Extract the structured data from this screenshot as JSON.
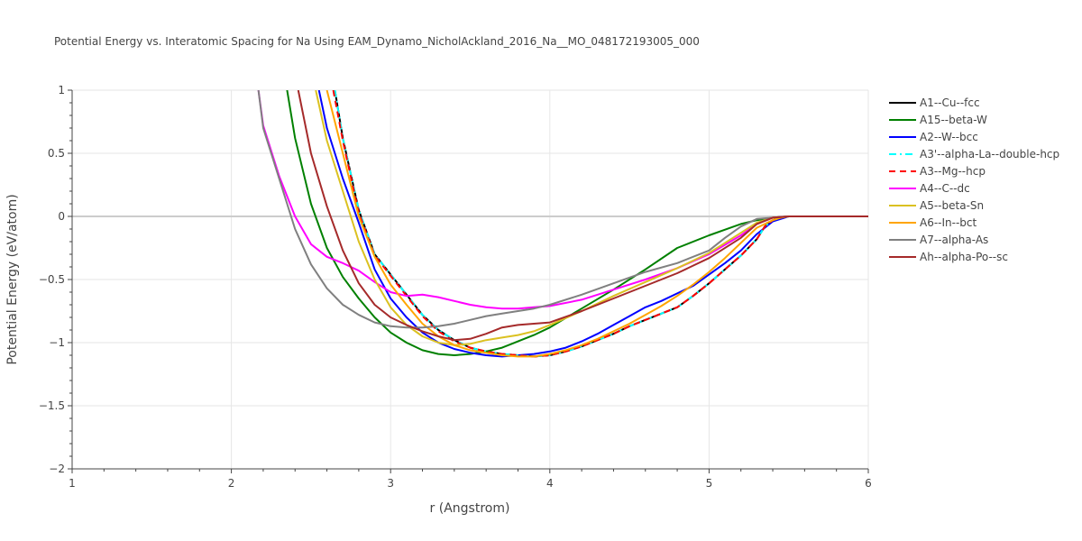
{
  "chart_data": {
    "type": "line",
    "title": "Potential Energy vs. Interatomic Spacing for Na Using EAM_Dynamo_NicholAckland_2016_Na__MO_048172193005_000",
    "xlabel": "r (Angstrom)",
    "ylabel": "Potential Energy (eV/atom)",
    "xlim": [
      1,
      6
    ],
    "ylim": [
      -2,
      1
    ],
    "xticks": [
      1,
      2,
      3,
      4,
      5,
      6
    ],
    "xtick_labels": [
      "1",
      "2",
      "3",
      "4",
      "5",
      "6"
    ],
    "yticks": [
      -2,
      -1.5,
      -1,
      -0.5,
      0,
      0.5,
      1
    ],
    "ytick_labels": [
      "−2",
      "−1.5",
      "−1",
      "−0.5",
      "0",
      "0.5",
      "1"
    ],
    "grid": true,
    "legend_position": "right",
    "series": [
      {
        "name": "A1--Cu--fcc",
        "color": "#000000",
        "dash": "solid",
        "x": [
          2.65,
          2.7,
          2.8,
          2.9,
          3.0,
          3.1,
          3.2,
          3.3,
          3.4,
          3.5,
          3.6,
          3.7,
          3.8,
          3.9,
          4.0,
          4.1,
          4.2,
          4.3,
          4.4,
          4.5,
          4.6,
          4.7,
          4.8,
          4.9,
          5.0,
          5.1,
          5.2,
          5.3,
          5.35,
          5.4,
          5.45,
          5.5,
          5.6,
          6.0
        ],
        "y": [
          1.0,
          0.62,
          0.05,
          -0.3,
          -0.46,
          -0.62,
          -0.78,
          -0.9,
          -0.98,
          -1.04,
          -1.07,
          -1.09,
          -1.1,
          -1.11,
          -1.1,
          -1.07,
          -1.03,
          -0.98,
          -0.93,
          -0.87,
          -0.82,
          -0.77,
          -0.72,
          -0.63,
          -0.53,
          -0.42,
          -0.31,
          -0.18,
          -0.08,
          -0.03,
          -0.01,
          0.0,
          0.0,
          0.0
        ]
      },
      {
        "name": "A15--beta-W",
        "color": "#008000",
        "dash": "solid",
        "x": [
          2.35,
          2.4,
          2.5,
          2.6,
          2.7,
          2.8,
          2.9,
          3.0,
          3.1,
          3.2,
          3.3,
          3.4,
          3.5,
          3.6,
          3.7,
          3.8,
          3.9,
          4.0,
          4.2,
          4.4,
          4.6,
          4.8,
          5.0,
          5.2,
          5.3,
          5.4,
          5.5,
          5.6,
          6.0
        ],
        "y": [
          1.0,
          0.62,
          0.1,
          -0.25,
          -0.48,
          -0.65,
          -0.8,
          -0.92,
          -1.0,
          -1.06,
          -1.09,
          -1.1,
          -1.09,
          -1.07,
          -1.04,
          -0.99,
          -0.94,
          -0.88,
          -0.73,
          -0.58,
          -0.42,
          -0.25,
          -0.15,
          -0.06,
          -0.03,
          -0.01,
          0.0,
          0.0,
          0.0
        ]
      },
      {
        "name": "A2--W--bcc",
        "color": "#0000ff",
        "dash": "solid",
        "x": [
          2.55,
          2.6,
          2.7,
          2.8,
          2.9,
          3.0,
          3.1,
          3.2,
          3.3,
          3.4,
          3.5,
          3.6,
          3.7,
          3.8,
          3.9,
          4.0,
          4.1,
          4.2,
          4.3,
          4.4,
          4.5,
          4.6,
          4.7,
          4.8,
          4.9,
          5.0,
          5.1,
          5.2,
          5.3,
          5.4,
          5.45,
          5.5,
          5.6,
          6.0
        ],
        "y": [
          1.0,
          0.7,
          0.3,
          -0.05,
          -0.42,
          -0.65,
          -0.8,
          -0.92,
          -1.0,
          -1.05,
          -1.08,
          -1.1,
          -1.11,
          -1.1,
          -1.09,
          -1.07,
          -1.04,
          -0.99,
          -0.93,
          -0.86,
          -0.79,
          -0.72,
          -0.67,
          -0.61,
          -0.55,
          -0.46,
          -0.37,
          -0.27,
          -0.14,
          -0.04,
          -0.02,
          0.0,
          0.0,
          0.0
        ]
      },
      {
        "name": "A3'--alpha-La--double-hcp",
        "color": "#00ffff",
        "dash": "dashdot",
        "x": [
          2.65,
          2.7,
          2.8,
          2.9,
          3.0,
          3.1,
          3.2,
          3.3,
          3.4,
          3.5,
          3.6,
          3.7,
          3.8,
          3.9,
          4.0,
          4.1,
          4.2,
          4.3,
          4.4,
          4.5,
          4.6,
          4.7,
          4.8,
          4.9,
          5.0,
          5.1,
          5.2,
          5.3,
          5.35,
          5.4,
          5.45,
          5.5,
          5.6,
          6.0
        ],
        "y": [
          1.0,
          0.62,
          0.05,
          -0.3,
          -0.46,
          -0.62,
          -0.78,
          -0.9,
          -0.98,
          -1.04,
          -1.07,
          -1.09,
          -1.1,
          -1.11,
          -1.1,
          -1.07,
          -1.03,
          -0.98,
          -0.93,
          -0.87,
          -0.82,
          -0.77,
          -0.72,
          -0.63,
          -0.53,
          -0.42,
          -0.31,
          -0.18,
          -0.08,
          -0.03,
          -0.01,
          0.0,
          0.0,
          0.0
        ]
      },
      {
        "name": "A3--Mg--hcp",
        "color": "#ff0000",
        "dash": "dash",
        "x": [
          2.64,
          2.7,
          2.8,
          2.9,
          3.0,
          3.1,
          3.2,
          3.3,
          3.4,
          3.5,
          3.6,
          3.7,
          3.8,
          3.9,
          4.0,
          4.1,
          4.2,
          4.3,
          4.4,
          4.5,
          4.6,
          4.7,
          4.8,
          4.9,
          5.0,
          5.1,
          5.2,
          5.3,
          5.35,
          5.4,
          5.45,
          5.5,
          5.6,
          6.0
        ],
        "y": [
          1.0,
          0.6,
          0.03,
          -0.31,
          -0.47,
          -0.63,
          -0.79,
          -0.91,
          -0.99,
          -1.04,
          -1.07,
          -1.09,
          -1.1,
          -1.11,
          -1.1,
          -1.07,
          -1.03,
          -0.98,
          -0.93,
          -0.87,
          -0.82,
          -0.77,
          -0.72,
          -0.63,
          -0.53,
          -0.42,
          -0.31,
          -0.18,
          -0.08,
          -0.03,
          -0.01,
          0.0,
          0.0,
          0.0
        ]
      },
      {
        "name": "A4--C--dc",
        "color": "#ff00ff",
        "dash": "solid",
        "x": [
          2.17,
          2.2,
          2.3,
          2.4,
          2.5,
          2.6,
          2.7,
          2.8,
          2.9,
          3.0,
          3.1,
          3.2,
          3.3,
          3.4,
          3.5,
          3.6,
          3.7,
          3.8,
          3.9,
          4.0,
          4.2,
          4.4,
          4.6,
          4.8,
          5.0,
          5.2,
          5.3,
          5.4,
          5.5,
          5.6,
          6.0
        ],
        "y": [
          1.0,
          0.72,
          0.32,
          0.0,
          -0.22,
          -0.32,
          -0.37,
          -0.43,
          -0.52,
          -0.6,
          -0.63,
          -0.62,
          -0.64,
          -0.67,
          -0.7,
          -0.72,
          -0.73,
          -0.73,
          -0.72,
          -0.71,
          -0.66,
          -0.58,
          -0.5,
          -0.41,
          -0.3,
          -0.15,
          -0.06,
          -0.01,
          0.0,
          0.0,
          0.0
        ]
      },
      {
        "name": "A5--beta-Sn",
        "color": "#dbc121",
        "dash": "solid",
        "x": [
          2.53,
          2.6,
          2.7,
          2.8,
          2.9,
          3.0,
          3.1,
          3.2,
          3.3,
          3.4,
          3.5,
          3.6,
          3.7,
          3.8,
          3.9,
          4.0,
          4.2,
          4.4,
          4.6,
          4.8,
          5.0,
          5.2,
          5.3,
          5.4,
          5.5,
          5.6,
          6.0
        ],
        "y": [
          1.0,
          0.6,
          0.2,
          -0.2,
          -0.5,
          -0.72,
          -0.86,
          -0.95,
          -1.0,
          -1.02,
          -1.01,
          -0.98,
          -0.96,
          -0.94,
          -0.91,
          -0.86,
          -0.75,
          -0.63,
          -0.52,
          -0.41,
          -0.29,
          -0.13,
          -0.05,
          -0.01,
          0.0,
          0.0,
          0.0
        ]
      },
      {
        "name": "A6--In--bct",
        "color": "#ffa500",
        "dash": "solid",
        "x": [
          2.6,
          2.7,
          2.8,
          2.9,
          3.0,
          3.1,
          3.2,
          3.3,
          3.4,
          3.5,
          3.6,
          3.7,
          3.8,
          3.9,
          4.0,
          4.1,
          4.2,
          4.3,
          4.4,
          4.5,
          4.6,
          4.7,
          4.8,
          4.9,
          5.0,
          5.1,
          5.2,
          5.3,
          5.4,
          5.45,
          5.5,
          5.6,
          6.0
        ],
        "y": [
          1.0,
          0.5,
          0.0,
          -0.32,
          -0.54,
          -0.7,
          -0.85,
          -0.95,
          -1.02,
          -1.06,
          -1.08,
          -1.1,
          -1.11,
          -1.11,
          -1.09,
          -1.06,
          -1.02,
          -0.97,
          -0.91,
          -0.85,
          -0.78,
          -0.71,
          -0.63,
          -0.54,
          -0.44,
          -0.33,
          -0.21,
          -0.09,
          -0.03,
          -0.01,
          0.0,
          0.0,
          0.0
        ]
      },
      {
        "name": "A7--alpha-As",
        "color": "#808080",
        "dash": "solid",
        "x": [
          2.17,
          2.2,
          2.3,
          2.4,
          2.5,
          2.6,
          2.7,
          2.8,
          2.9,
          3.0,
          3.1,
          3.2,
          3.3,
          3.4,
          3.5,
          3.6,
          3.7,
          3.8,
          3.9,
          4.0,
          4.2,
          4.4,
          4.6,
          4.8,
          5.0,
          5.1,
          5.2,
          5.3,
          5.4,
          5.5,
          5.6,
          6.0
        ],
        "y": [
          1.0,
          0.7,
          0.3,
          -0.1,
          -0.38,
          -0.57,
          -0.7,
          -0.78,
          -0.84,
          -0.87,
          -0.88,
          -0.88,
          -0.87,
          -0.85,
          -0.82,
          -0.79,
          -0.77,
          -0.75,
          -0.73,
          -0.7,
          -0.62,
          -0.53,
          -0.44,
          -0.37,
          -0.27,
          -0.17,
          -0.08,
          -0.02,
          -0.01,
          0.0,
          0.0,
          0.0
        ]
      },
      {
        "name": "Ah--alpha-Po--sc",
        "color": "#a52a2a",
        "dash": "solid",
        "x": [
          2.42,
          2.5,
          2.6,
          2.7,
          2.8,
          2.9,
          3.0,
          3.1,
          3.2,
          3.3,
          3.4,
          3.5,
          3.6,
          3.7,
          3.8,
          3.9,
          4.0,
          4.2,
          4.4,
          4.6,
          4.8,
          5.0,
          5.2,
          5.3,
          5.4,
          5.5,
          5.6,
          6.0
        ],
        "y": [
          1.0,
          0.5,
          0.08,
          -0.27,
          -0.53,
          -0.7,
          -0.8,
          -0.86,
          -0.91,
          -0.95,
          -0.98,
          -0.97,
          -0.93,
          -0.88,
          -0.86,
          -0.85,
          -0.84,
          -0.75,
          -0.65,
          -0.55,
          -0.45,
          -0.33,
          -0.17,
          -0.06,
          -0.01,
          0.0,
          0.0,
          0.0
        ]
      }
    ]
  }
}
